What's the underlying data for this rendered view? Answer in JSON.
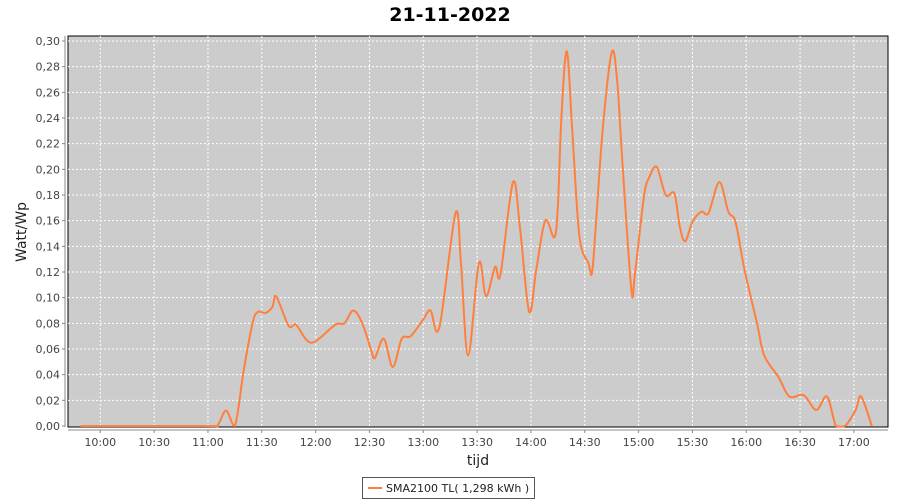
{
  "chart_data": {
    "type": "line",
    "title": "21-11-2022",
    "xlabel": "tijd",
    "ylabel": "Watt/Wp",
    "ylim": [
      0,
      0.3
    ],
    "xlim": [
      "09:42",
      "17:19"
    ],
    "yticks": [
      "0,00",
      "0,02",
      "0,04",
      "0,06",
      "0,08",
      "0,10",
      "0,12",
      "0,14",
      "0,16",
      "0,18",
      "0,20",
      "0,22",
      "0,24",
      "0,26",
      "0,28",
      "0,30"
    ],
    "xticks": [
      "10:00",
      "10:30",
      "11:00",
      "11:30",
      "12:00",
      "12:30",
      "13:00",
      "13:30",
      "14:00",
      "14:30",
      "15:00",
      "15:30",
      "16:00",
      "16:30",
      "17:00"
    ],
    "grid": true,
    "legend_placement": "bottom",
    "background_color": "#cccccc",
    "series": [
      {
        "name": "SMA2100 TL( 1,298 kWh )",
        "color": "#ff7f3f",
        "x": [
          "09:49",
          "10:58",
          "11:05",
          "11:10",
          "11:15",
          "11:20",
          "11:25",
          "11:28",
          "11:32",
          "11:36",
          "11:38",
          "11:45",
          "11:49",
          "11:55",
          "12:00",
          "12:11",
          "12:16",
          "12:21",
          "12:26",
          "12:31",
          "12:33",
          "12:38",
          "12:43",
          "12:48",
          "12:53",
          "13:00",
          "13:04",
          "13:09",
          "13:18",
          "13:21",
          "13:25",
          "13:31",
          "13:35",
          "13:40",
          "13:43",
          "13:50",
          "13:54",
          "13:59",
          "14:03",
          "14:08",
          "14:13",
          "14:15",
          "14:17",
          "14:20",
          "14:23",
          "14:27",
          "14:32",
          "14:34",
          "14:36",
          "14:40",
          "14:45",
          "14:48",
          "14:51",
          "14:56",
          "14:58",
          "15:03",
          "15:06",
          "15:10",
          "15:14",
          "15:16",
          "15:20",
          "15:23",
          "15:26",
          "15:30",
          "15:35",
          "15:39",
          "15:45",
          "15:50",
          "15:54",
          "15:59",
          "16:06",
          "16:10",
          "16:18",
          "16:24",
          "16:32",
          "16:39",
          "16:45",
          "16:50",
          "16:55",
          "17:01",
          "17:04",
          "17:10"
        ],
        "y": [
          0,
          0,
          0,
          0.012,
          0,
          0.044,
          0.081,
          0.089,
          0.088,
          0.093,
          0.101,
          0.078,
          0.079,
          0.067,
          0.066,
          0.079,
          0.08,
          0.09,
          0.08,
          0.059,
          0.053,
          0.068,
          0.046,
          0.068,
          0.07,
          0.083,
          0.09,
          0.077,
          0.166,
          0.127,
          0.055,
          0.127,
          0.101,
          0.124,
          0.118,
          0.19,
          0.153,
          0.089,
          0.122,
          0.16,
          0.147,
          0.171,
          0.241,
          0.292,
          0.231,
          0.148,
          0.127,
          0.119,
          0.153,
          0.231,
          0.291,
          0.27,
          0.205,
          0.106,
          0.119,
          0.179,
          0.194,
          0.202,
          0.184,
          0.179,
          0.181,
          0.155,
          0.144,
          0.159,
          0.167,
          0.166,
          0.19,
          0.167,
          0.159,
          0.122,
          0.08,
          0.055,
          0.038,
          0.023,
          0.024,
          0.0125,
          0.023,
          0,
          0,
          0.0125,
          0.023,
          0
        ]
      }
    ]
  }
}
